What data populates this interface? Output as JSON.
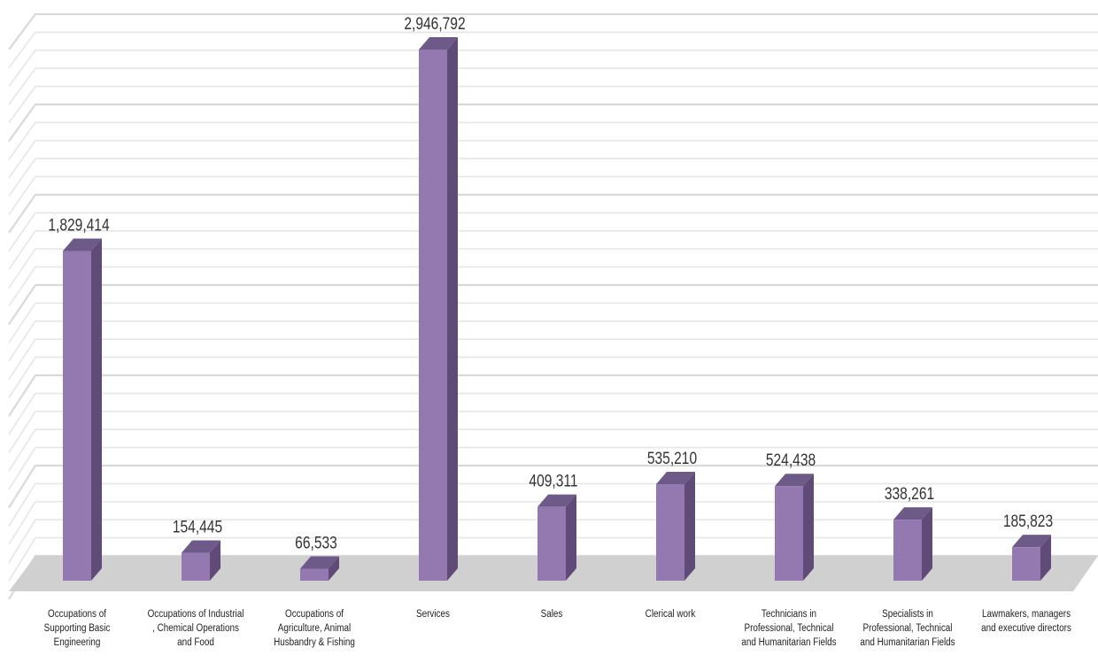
{
  "chart_data": {
    "type": "bar",
    "title": "",
    "xlabel": "",
    "ylabel": "",
    "ylim": [
      0,
      3000000
    ],
    "grid": true,
    "legend": "none",
    "bar_color": "#9479B0",
    "bar_side_color": "#5F4A78",
    "bar_top_color": "#6E5A88",
    "floor_color": "#D0D0D0",
    "categories": [
      "Occupations of Supporting Basic Engineering",
      "Occupations of Industrial , Chemical Operations and Food",
      "Occupations of Agriculture, Animal Husbandry & Fishing",
      "Services",
      "Sales",
      "Clerical work",
      "Technicians in Professional, Technical and Humanitarian Fields",
      "Specialists in Professional, Technical and Humanitarian Fields",
      "Lawmakers, managers and executive directors"
    ],
    "values": [
      1829414,
      154445,
      66533,
      2946792,
      409311,
      535210,
      524438,
      338261,
      185823
    ],
    "value_labels": [
      "1,829,414",
      "154,445",
      "66,533",
      "2,946,792",
      "409,311",
      "535,210",
      "524,438",
      "338,261",
      "185,823"
    ]
  }
}
